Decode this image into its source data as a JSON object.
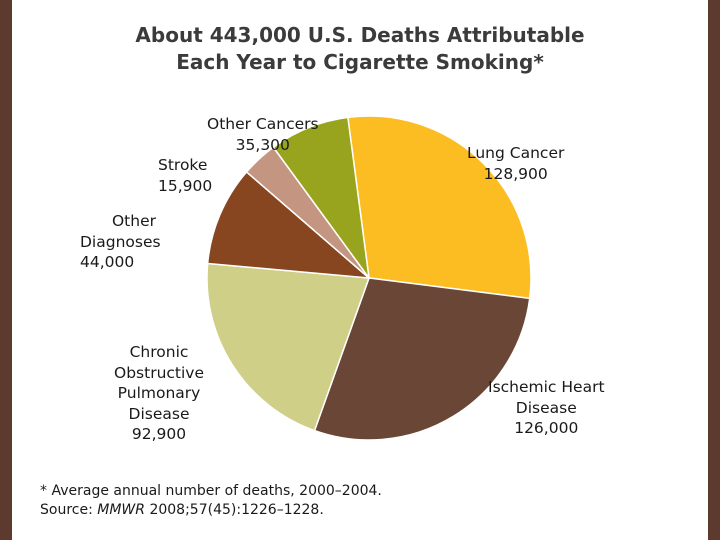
{
  "title_lines": [
    "About 443,000 U.S. Deaths Attributable",
    "Each Year to Cigarette Smoking*"
  ],
  "colors": {
    "background_frame": "#5c3b2e",
    "lung_cancer": "#fbbd21",
    "ischemic_heart": "#6a4636",
    "copd": "#cfcf87",
    "other_diagnoses": "#87461f",
    "stroke": "#c49682",
    "other_cancers": "#98a41d"
  },
  "chart_data": {
    "type": "pie",
    "title": "About 443,000 U.S. Deaths Attributable Each Year to Cigarette Smoking*",
    "slices": [
      {
        "label": "Lung Cancer",
        "value": 128900,
        "value_text": "128,900",
        "label_lines": [
          "Lung Cancer"
        ]
      },
      {
        "label": "Ischemic Heart Disease",
        "value": 126000,
        "value_text": "126,000",
        "label_lines": [
          "Ischemic Heart",
          "Disease"
        ]
      },
      {
        "label": "Chronic Obstructive Pulmonary Disease",
        "value": 92900,
        "value_text": "92,900",
        "label_lines": [
          "Chronic",
          "Obstructive",
          "Pulmonary",
          "Disease"
        ]
      },
      {
        "label": "Other Diagnoses",
        "value": 44000,
        "value_text": "44,000",
        "label_lines": [
          "Other",
          "Diagnoses"
        ]
      },
      {
        "label": "Stroke",
        "value": 15900,
        "value_text": "15,900",
        "label_lines": [
          "Stroke"
        ]
      },
      {
        "label": "Other Cancers",
        "value": 35300,
        "value_text": "35,300",
        "label_lines": [
          "Other Cancers"
        ]
      }
    ]
  },
  "footnote": {
    "line1": "* Average annual number of deaths, 2000–2004.",
    "source_prefix": "Source: ",
    "source_italic": "MMWR",
    "source_rest": " 2008;57(45):1226–1228."
  }
}
